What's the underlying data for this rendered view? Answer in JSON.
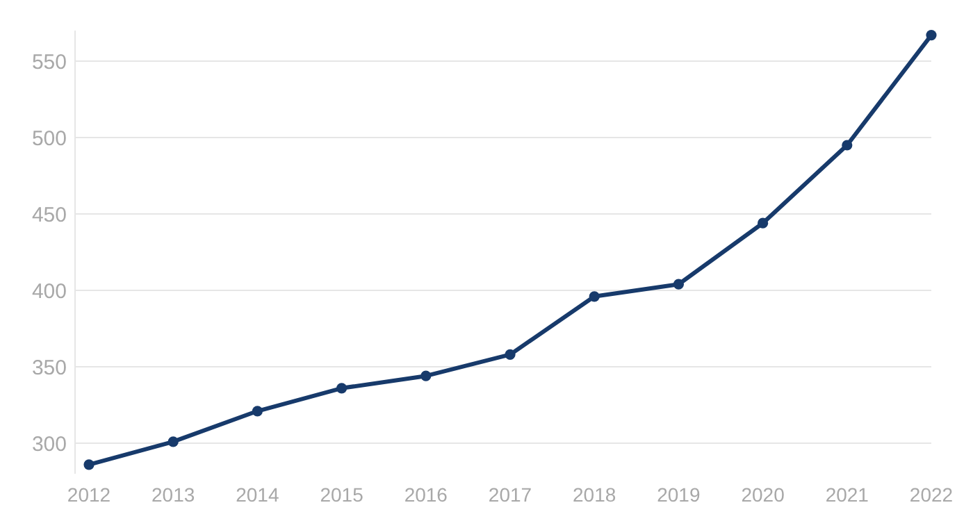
{
  "chart_data": {
    "type": "line",
    "categories": [
      "2012",
      "2013",
      "2014",
      "2015",
      "2016",
      "2017",
      "2018",
      "2019",
      "2020",
      "2021",
      "2022"
    ],
    "series": [
      {
        "color": "#173a6b",
        "values": [
          286,
          301,
          321,
          336,
          344,
          358,
          396,
          404,
          444,
          495,
          567
        ]
      }
    ],
    "ylim": [
      280,
      570
    ],
    "yticks": [
      300,
      350,
      400,
      450,
      500,
      550
    ],
    "grid": "y",
    "marker": "circle",
    "line_style": "solid"
  }
}
